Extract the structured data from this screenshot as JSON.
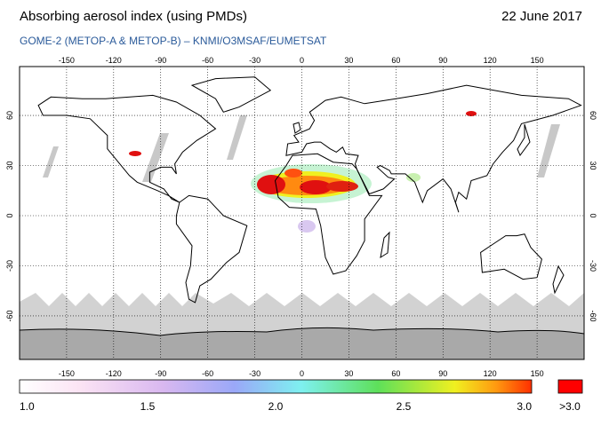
{
  "header": {
    "title": "Absorbing aerosol index (using PMDs)",
    "date": "22 June 2017",
    "subtitle": "GOME-2 (METOP-A & METOP-B)  –  KNMI/O3MSAF/EUMETSAT"
  },
  "map": {
    "lon_ticks": [
      -150,
      -120,
      -90,
      -60,
      -30,
      0,
      30,
      60,
      90,
      120,
      150
    ],
    "lat_ticks": [
      60,
      30,
      0,
      -30,
      -60
    ]
  },
  "colorbar": {
    "labels": [
      "1.0",
      "1.5",
      "2.0",
      "2.5",
      "3.0"
    ],
    "over_label": ">3.0"
  }
}
